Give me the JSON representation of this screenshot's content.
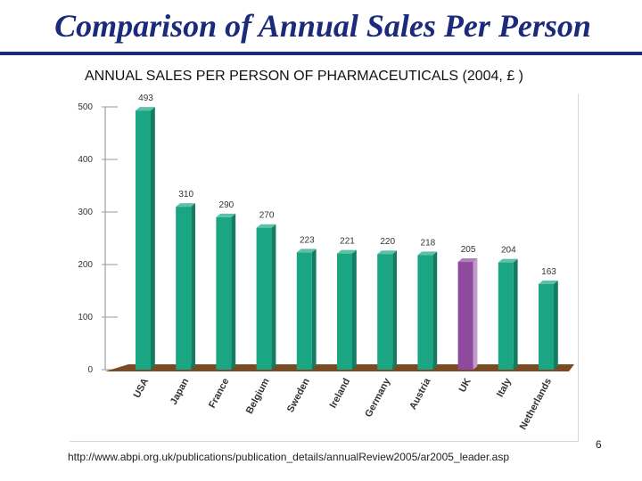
{
  "slide": {
    "title": "Comparison of Annual Sales Per Person",
    "source": "http://www.abpi.org.uk/publications/publication_details/annualReview2005/ar2005_leader.asp",
    "page_number": "6"
  },
  "colors": {
    "title": "#1c2a7c",
    "bar": "#1aa583",
    "highlight_bar": "#8e4a9c",
    "floor": "#7a4a22"
  },
  "chart_data": {
    "type": "bar",
    "title": "ANNUAL SALES PER PERSON OF PHARMACEUTICALS (2004, £ )",
    "xlabel": "",
    "ylabel": "",
    "ylim": [
      0,
      500
    ],
    "yticks": [
      0,
      100,
      200,
      300,
      400,
      500
    ],
    "categories": [
      "USA",
      "Japan",
      "France",
      "Belgium",
      "Sweden",
      "Ireland",
      "Germany",
      "Austria",
      "UK",
      "Italy",
      "Netherlands"
    ],
    "values": [
      493,
      310,
      290,
      270,
      223,
      221,
      220,
      218,
      205,
      204,
      163
    ],
    "highlight": "UK",
    "grid": false,
    "legend": "none"
  }
}
